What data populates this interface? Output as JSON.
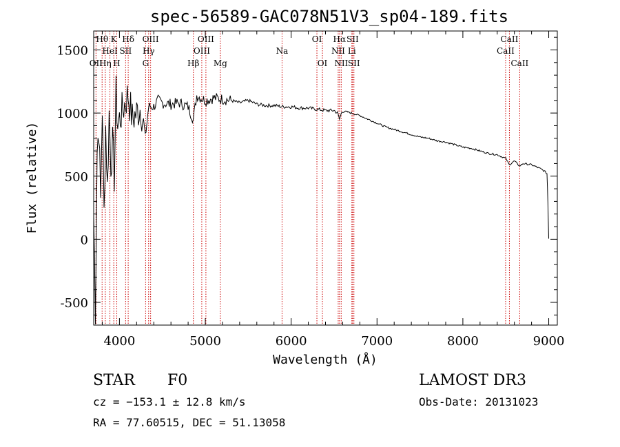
{
  "chart_data": {
    "type": "line",
    "title": "spec-56589-GAC078N51V3_sp04-189.fits",
    "xlabel": "Wavelength (Å)",
    "ylabel": "Flux (relative)",
    "xlim": [
      3700,
      9100
    ],
    "ylim": [
      -680,
      1650
    ],
    "x_ticks": [
      4000,
      5000,
      6000,
      7000,
      8000,
      9000
    ],
    "y_ticks": [
      -500,
      0,
      500,
      1000,
      1500
    ],
    "series": [
      {
        "name": "flux",
        "x": [
          3700,
          3720,
          3740,
          3760,
          3780,
          3800,
          3820,
          3840,
          3860,
          3880,
          3900,
          3920,
          3940,
          3960,
          3980,
          4000,
          4050,
          4100,
          4150,
          4200,
          4250,
          4300,
          4340,
          4400,
          4450,
          4500,
          4600,
          4700,
          4800,
          4861,
          4900,
          5000,
          5100,
          5200,
          5300,
          5400,
          5500,
          5600,
          5700,
          5800,
          5900,
          6000,
          6100,
          6200,
          6300,
          6400,
          6500,
          6540,
          6563,
          6590,
          6650,
          6700,
          6800,
          6900,
          7000,
          7100,
          7200,
          7300,
          7400,
          7500,
          7600,
          7700,
          7800,
          7900,
          8000,
          8100,
          8200,
          8300,
          8400,
          8500,
          8540,
          8600,
          8662,
          8700,
          8800,
          8900,
          8950,
          8980,
          8990,
          9000
        ],
        "y": [
          200,
          -550,
          700,
          900,
          300,
          1050,
          200,
          900,
          400,
          1000,
          600,
          750,
          500,
          1150,
          900,
          950,
          1050,
          1150,
          950,
          1000,
          1050,
          800,
          1050,
          1050,
          1100,
          1080,
          1070,
          1080,
          1050,
          950,
          1140,
          1100,
          1120,
          1110,
          1100,
          1080,
          1100,
          1070,
          1060,
          1060,
          1050,
          1050,
          1040,
          1040,
          1030,
          1020,
          1020,
          1000,
          950,
          1010,
          1010,
          1000,
          980,
          950,
          920,
          890,
          870,
          850,
          830,
          810,
          800,
          780,
          770,
          750,
          730,
          720,
          700,
          680,
          670,
          640,
          590,
          620,
          580,
          600,
          590,
          560,
          540,
          520,
          300,
          5
        ]
      }
    ],
    "lines": [
      {
        "label": "Hθ",
        "wl": 3798,
        "row": 0
      },
      {
        "label": "OII",
        "wl": 3727,
        "row": 2
      },
      {
        "label": "Hη",
        "wl": 3835,
        "row": 2
      },
      {
        "label": "HeI",
        "wl": 3889,
        "row": 1
      },
      {
        "label": "K",
        "wl": 3934,
        "row": 0
      },
      {
        "label": "H",
        "wl": 3969,
        "row": 2
      },
      {
        "label": "SII",
        "wl": 4072,
        "row": 1
      },
      {
        "label": "Hδ",
        "wl": 4102,
        "row": 0
      },
      {
        "label": "G",
        "wl": 4305,
        "row": 2
      },
      {
        "label": "Hγ",
        "wl": 4340,
        "row": 1
      },
      {
        "label": "OIII",
        "wl": 4363,
        "row": 0
      },
      {
        "label": "Hβ",
        "wl": 4861,
        "row": 2
      },
      {
        "label": "OIII",
        "wl": 4959,
        "row": 1
      },
      {
        "label": "OIII",
        "wl": 5007,
        "row": 0
      },
      {
        "label": "Mg",
        "wl": 5175,
        "row": 2
      },
      {
        "label": "Na",
        "wl": 5894,
        "row": 1
      },
      {
        "label": "OI",
        "wl": 6300,
        "row": 0
      },
      {
        "label": "OI",
        "wl": 6364,
        "row": 2
      },
      {
        "label": "NII",
        "wl": 6548,
        "row": 1
      },
      {
        "label": "Hα",
        "wl": 6563,
        "row": 0
      },
      {
        "label": "NII",
        "wl": 6583,
        "row": 2
      },
      {
        "label": "Li",
        "wl": 6707,
        "row": 1
      },
      {
        "label": "SII",
        "wl": 6716,
        "row": 0
      },
      {
        "label": "SII",
        "wl": 6731,
        "row": 2
      },
      {
        "label": "CaII",
        "wl": 8498,
        "row": 1
      },
      {
        "label": "CaII",
        "wl": 8542,
        "row": 0
      },
      {
        "label": "CaII",
        "wl": 8662,
        "row": 2
      }
    ]
  },
  "footer": {
    "class_label": "STAR",
    "subclass": "F0",
    "survey": "LAMOST DR3",
    "cz": "cz = −153.1 ± 12.8 km/s",
    "obs_date": "Obs-Date: 20131023",
    "coords": "RA =  77.60515, DEC =  51.13058"
  },
  "colors": {
    "line_marker": "#cc0000",
    "spectrum": "#000000",
    "axis": "#000000"
  }
}
